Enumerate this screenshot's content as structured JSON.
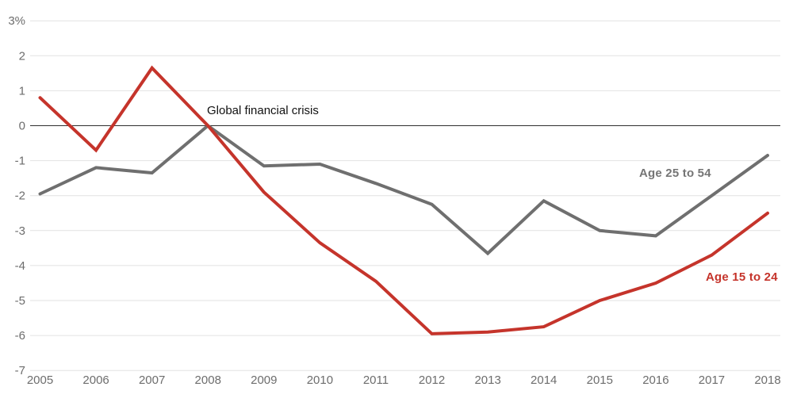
{
  "chart_data": {
    "type": "line",
    "title": "",
    "xlabel": "",
    "ylabel": "",
    "x": [
      2005,
      2006,
      2007,
      2008,
      2009,
      2010,
      2011,
      2012,
      2013,
      2014,
      2015,
      2016,
      2017,
      2018
    ],
    "x_tick_labels": [
      "2005",
      "2006",
      "2007",
      "2008",
      "2009",
      "2010",
      "2011",
      "2012",
      "2013",
      "2014",
      "2015",
      "2016",
      "2017",
      "2018"
    ],
    "ylim": [
      -7,
      3
    ],
    "y_ticks": [
      {
        "value": 3,
        "label": "3%"
      },
      {
        "value": 2,
        "label": "2"
      },
      {
        "value": 1,
        "label": "1"
      },
      {
        "value": 0,
        "label": "0"
      },
      {
        "value": -1,
        "label": "-1"
      },
      {
        "value": -2,
        "label": "-2"
      },
      {
        "value": -3,
        "label": "-3"
      },
      {
        "value": -4,
        "label": "-4"
      },
      {
        "value": -5,
        "label": "-5"
      },
      {
        "value": -6,
        "label": "-6"
      },
      {
        "value": -7,
        "label": "-7"
      }
    ],
    "grid": "horizontal gridlines on, vertical off",
    "zero_line": true,
    "legend_position": "inline labels at right end of each line",
    "series": [
      {
        "name": "Age 25 to 54",
        "color": "#6f6f6f",
        "label_color": "#757575",
        "values": [
          -1.95,
          -1.2,
          -1.35,
          0.0,
          -1.15,
          -1.1,
          -1.65,
          -2.25,
          -3.65,
          -2.15,
          -3.0,
          -3.15,
          -2.0,
          -0.85
        ]
      },
      {
        "name": "Age 15 to 24",
        "color": "#c5342b",
        "label_color": "#c5342b",
        "values": [
          0.8,
          -0.7,
          1.65,
          0.0,
          -1.9,
          -3.35,
          -4.45,
          -5.95,
          -5.9,
          -5.75,
          -5.0,
          -4.5,
          -3.7,
          -2.5
        ]
      }
    ],
    "annotation": {
      "text": "Global financial crisis",
      "color": "#111111",
      "anchor_year": 2008,
      "anchor_value": 0.3
    },
    "colors": {
      "background": "#ffffff",
      "gridline": "#e2e2e2",
      "zero_line": "#2f2f2f",
      "tick_label": "#6d6d6d"
    }
  }
}
